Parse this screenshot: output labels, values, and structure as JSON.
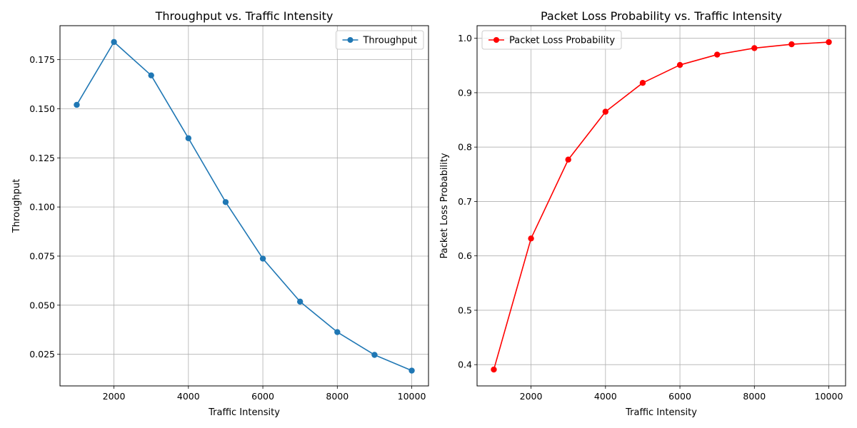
{
  "chart_data": [
    {
      "type": "line",
      "title": "Throughput vs. Traffic Intensity",
      "xlabel": "Traffic Intensity",
      "ylabel": "Throughput",
      "x": [
        1000,
        2000,
        3000,
        4000,
        5000,
        6000,
        7000,
        8000,
        9000,
        10000
      ],
      "series": [
        {
          "name": "Throughput",
          "color": "#1f77b4",
          "marker": "circle",
          "values": [
            0.152,
            0.184,
            0.167,
            0.135,
            0.1025,
            0.0737,
            0.0518,
            0.0363,
            0.0247,
            0.0167
          ]
        }
      ],
      "xlim": [
        550,
        10450
      ],
      "ylim": [
        0.0089,
        0.1923
      ],
      "xticks": [
        2000,
        4000,
        6000,
        8000,
        10000
      ],
      "xtick_labels": [
        "2000",
        "4000",
        "6000",
        "8000",
        "10000"
      ],
      "yticks": [
        0.025,
        0.05,
        0.075,
        0.1,
        0.125,
        0.15,
        0.175
      ],
      "ytick_labels": [
        "0.025",
        "0.050",
        "0.075",
        "0.100",
        "0.125",
        "0.150",
        "0.175"
      ],
      "grid": true,
      "legend_position": "upper-right"
    },
    {
      "type": "line",
      "title": "Packet Loss Probability vs. Traffic Intensity",
      "xlabel": "Traffic Intensity",
      "ylabel": "Packet Loss Probability",
      "x": [
        1000,
        2000,
        3000,
        4000,
        5000,
        6000,
        7000,
        8000,
        9000,
        10000
      ],
      "series": [
        {
          "name": "Packet Loss Probability",
          "color": "#ff0000",
          "marker": "circle",
          "values": [
            0.391,
            0.632,
            0.777,
            0.865,
            0.918,
            0.951,
            0.97,
            0.982,
            0.989,
            0.993
          ]
        }
      ],
      "xlim": [
        550,
        10450
      ],
      "ylim": [
        0.3609,
        1.0232
      ],
      "xticks": [
        2000,
        4000,
        6000,
        8000,
        10000
      ],
      "xtick_labels": [
        "2000",
        "4000",
        "6000",
        "8000",
        "10000"
      ],
      "yticks": [
        0.4,
        0.5,
        0.6,
        0.7,
        0.8,
        0.9,
        1.0
      ],
      "ytick_labels": [
        "0.4",
        "0.5",
        "0.6",
        "0.7",
        "0.8",
        "0.9",
        "1.0"
      ],
      "grid": true,
      "legend_position": "upper-left"
    }
  ]
}
